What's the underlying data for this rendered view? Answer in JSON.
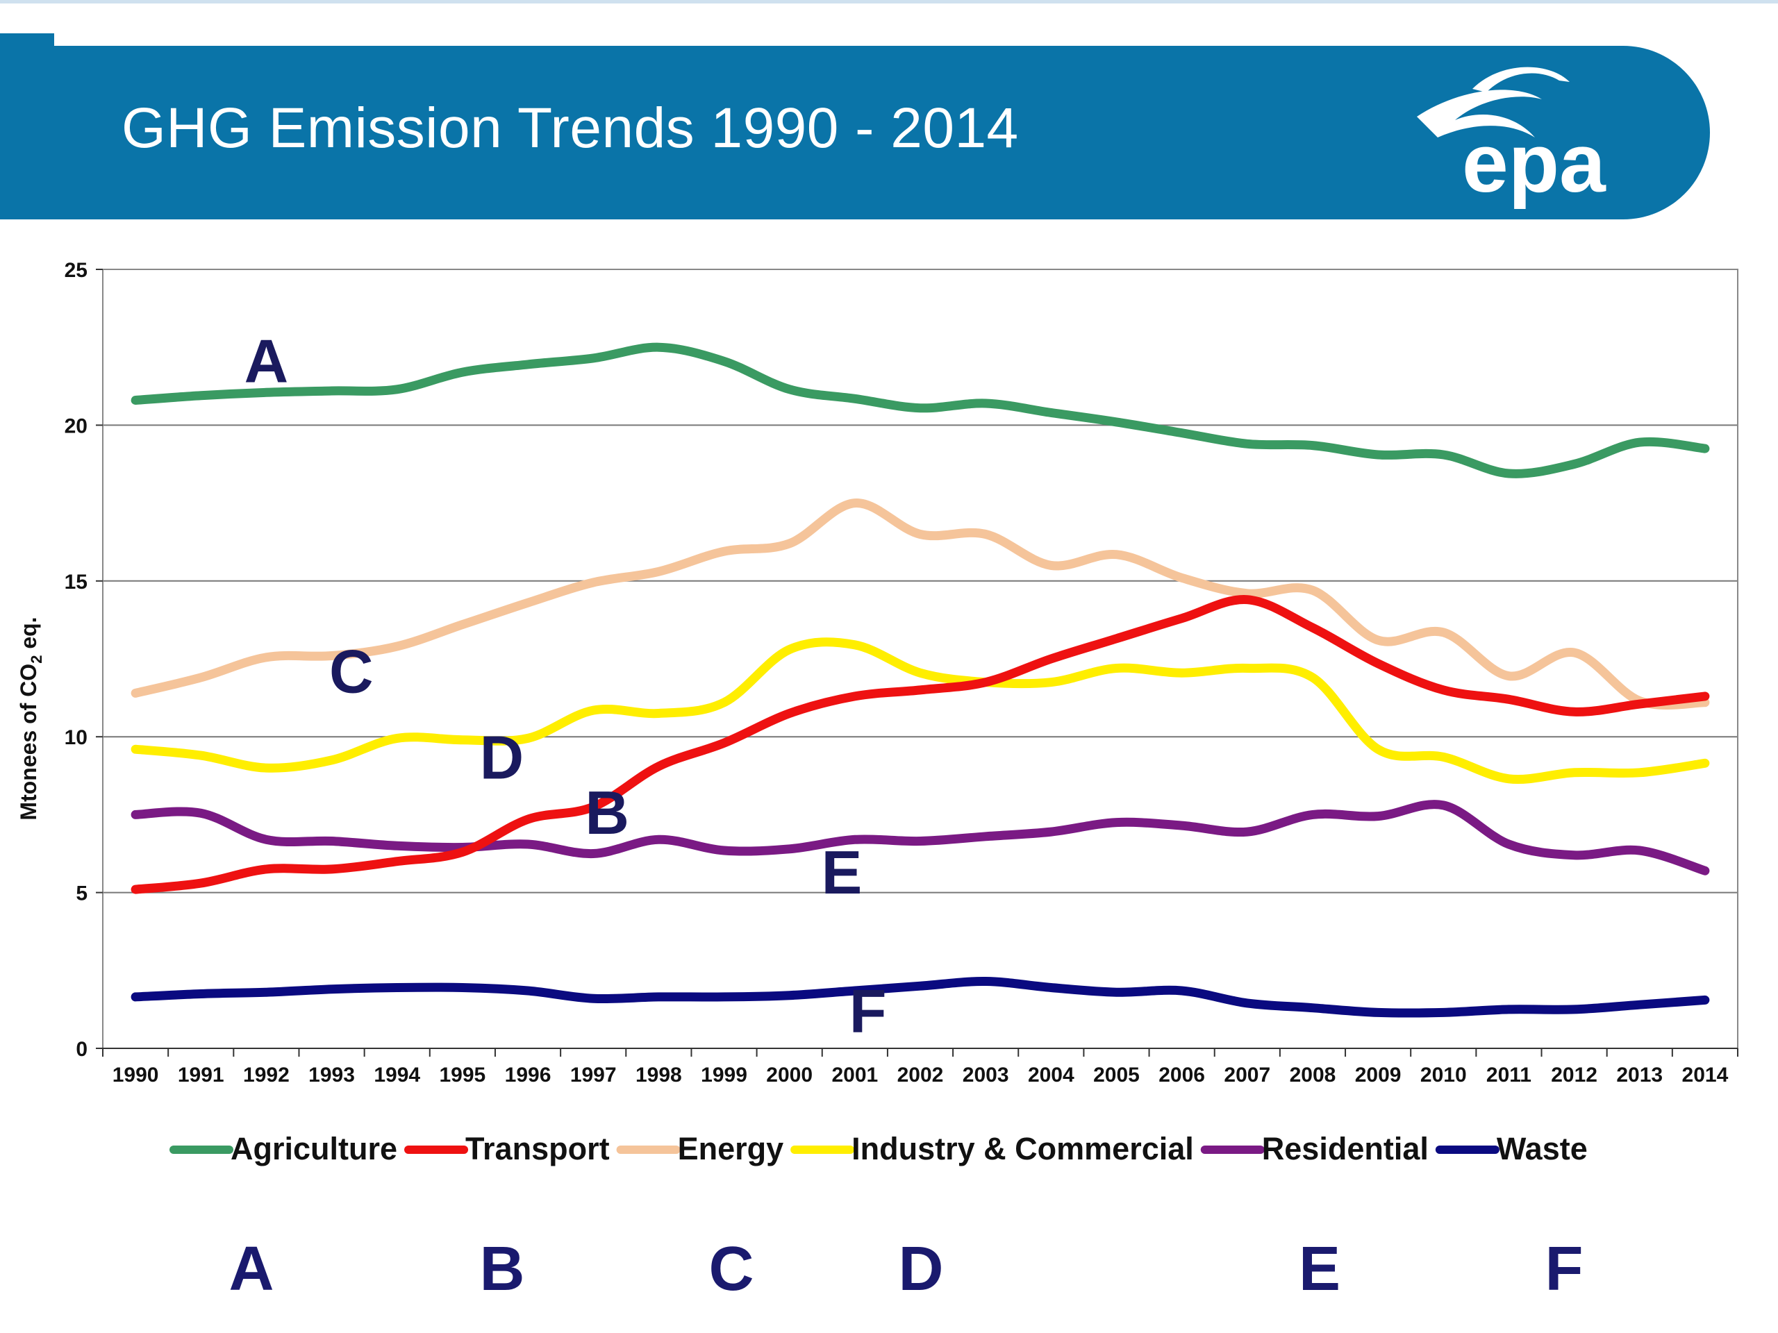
{
  "slide": {
    "title": "GHG Emission Trends 1990 - 2014",
    "logo_text": "epa",
    "banner_color": "#0a74a8"
  },
  "chart_data": {
    "type": "line",
    "title": "",
    "xlabel": "",
    "ylabel": "Mtonees of CO2 eq.",
    "ylim": [
      0,
      25
    ],
    "yticks": [
      0,
      5,
      10,
      15,
      20,
      25
    ],
    "grid": true,
    "legend_position": "bottom",
    "categories": [
      "1990",
      "1991",
      "1992",
      "1993",
      "1994",
      "1995",
      "1996",
      "1997",
      "1998",
      "1999",
      "2000",
      "2001",
      "2002",
      "2003",
      "2004",
      "2005",
      "2006",
      "2007",
      "2008",
      "2009",
      "2010",
      "2011",
      "2012",
      "2013",
      "2014"
    ],
    "series": [
      {
        "name": "Agriculture",
        "tag": "A",
        "color": "#3a9a62",
        "values": [
          20.8,
          20.95,
          21.05,
          21.1,
          21.15,
          21.7,
          21.95,
          22.15,
          22.5,
          22.05,
          21.15,
          20.85,
          20.55,
          20.7,
          20.4,
          20.1,
          19.75,
          19.4,
          19.35,
          19.05,
          19.05,
          18.45,
          18.75,
          19.45,
          19.25
        ]
      },
      {
        "name": "Transport",
        "tag": "B",
        "color": "#ee1111",
        "values": [
          5.1,
          5.3,
          5.75,
          5.75,
          6.0,
          6.3,
          7.35,
          7.75,
          9.05,
          9.8,
          10.75,
          11.3,
          11.5,
          11.75,
          12.5,
          13.15,
          13.8,
          14.4,
          13.5,
          12.35,
          11.5,
          11.2,
          10.8,
          11.05,
          11.3
        ]
      },
      {
        "name": "Energy",
        "tag": "C",
        "color": "#f5c49a",
        "values": [
          11.4,
          11.9,
          12.55,
          12.6,
          12.9,
          13.6,
          14.3,
          14.95,
          15.3,
          15.95,
          16.2,
          17.5,
          16.5,
          16.5,
          15.5,
          15.85,
          15.1,
          14.6,
          14.7,
          13.1,
          13.35,
          11.95,
          12.7,
          11.15,
          11.1
        ]
      },
      {
        "name": "Industry & Commercial",
        "tag": "D",
        "color": "#ffee00",
        "values": [
          9.6,
          9.4,
          9.0,
          9.25,
          9.95,
          9.9,
          9.95,
          10.85,
          10.75,
          11.1,
          12.8,
          12.95,
          12.05,
          11.75,
          11.75,
          12.2,
          12.05,
          12.2,
          11.9,
          9.6,
          9.35,
          8.65,
          8.85,
          8.85,
          9.15
        ]
      },
      {
        "name": "Residential",
        "tag": "E",
        "color": "#7a1a84",
        "values": [
          7.5,
          7.55,
          6.7,
          6.65,
          6.5,
          6.45,
          6.55,
          6.25,
          6.7,
          6.35,
          6.4,
          6.7,
          6.65,
          6.8,
          6.95,
          7.25,
          7.15,
          6.95,
          7.5,
          7.45,
          7.8,
          6.55,
          6.2,
          6.35,
          5.7
        ]
      },
      {
        "name": "Waste",
        "tag": "F",
        "color": "#0a0a80",
        "values": [
          1.65,
          1.75,
          1.8,
          1.9,
          1.95,
          1.95,
          1.85,
          1.6,
          1.65,
          1.65,
          1.7,
          1.85,
          2.0,
          2.15,
          1.95,
          1.8,
          1.85,
          1.45,
          1.3,
          1.15,
          1.15,
          1.25,
          1.25,
          1.4,
          1.55
        ]
      }
    ],
    "annotations": [
      "A",
      "B",
      "C",
      "D",
      "E",
      "F"
    ]
  },
  "bottom_tags": [
    "A",
    "B",
    "C",
    "D",
    "E",
    "F"
  ]
}
